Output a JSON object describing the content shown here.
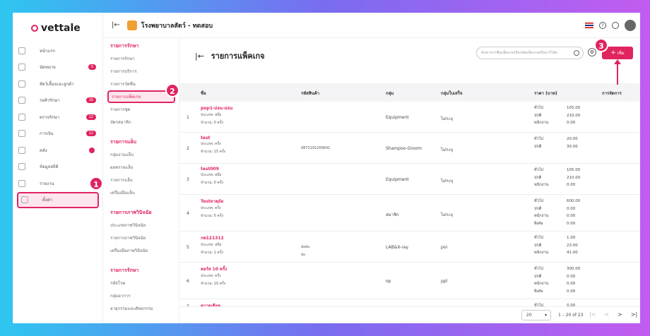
{
  "brand": {
    "name": "vettale"
  },
  "topbar": {
    "clinic_name": "โรงพยาบาลสัตว์ - ทดสอบ",
    "help": "?"
  },
  "sidebar": {
    "items": [
      {
        "label": "หน้าแรก"
      },
      {
        "label": "นัดหมาย",
        "badge": "0"
      },
      {
        "label": "สัตว์เลี้ยงและลูกค้า"
      },
      {
        "label": "รอคิวรักษา",
        "badge": "16"
      },
      {
        "label": "ตรวจรักษา",
        "badge": "12"
      },
      {
        "label": "การเงิน",
        "badge": "12"
      },
      {
        "label": "คลัง",
        "dot": true
      },
      {
        "label": "ข้อมูลสถิติ"
      },
      {
        "label": "รายงาน"
      },
      {
        "label": "ตั้งค่า"
      }
    ]
  },
  "submenu": {
    "sections": [
      {
        "title": "รายการรักษา",
        "items": [
          "รายการรักษา",
          "รายการบริการ",
          "รายการวัคซีน",
          "รายการแพ็คเกจ",
          "รายการชุด",
          "บัตรสมาชิก"
        ]
      },
      {
        "title": "รายการแล็บ",
        "items": [
          "กลุ่มงานแล็บ",
          "ผลตรวจแล็บ",
          "รายการแล็บ",
          "เครื่องมือแล็บ"
        ]
      },
      {
        "title": "รายการภาพวินิจฉัย",
        "items": [
          "ประเภทภาพวินิจฉัย",
          "รายการภาพวินิจฉัย",
          "เครื่องมือภาพวินิจฉัย"
        ]
      },
      {
        "title": "รายการรักษา",
        "items": [
          "รหัสโรค",
          "กลุ่มอาการ",
          "อายุกรรมและศัลยกรรม"
        ]
      }
    ]
  },
  "main": {
    "title": "รายการแพ็คเกจ",
    "search_placeholder": "ค้นหาจากชื่อแพ็คเกจหรือรหัสแพ็คเกจหรือบาร์โค้ด",
    "add_label": "เพิ่ม",
    "columns": [
      "ชื่อ",
      "รหัสสินค้า",
      "กลุ่ม",
      "กลุ่มใบเสร็จ",
      "ราคา (บาท)",
      "การจัดการ"
    ],
    "rows": [
      {
        "no": "1",
        "name": "pop1-ม่อน-ม่อน",
        "type": "ประเภท: หนึ่ง",
        "qty": "จำนวน: 0 ครั้ง",
        "code": "",
        "group": "Equipment",
        "receipt": "ไม่ระบุ",
        "prices": [
          [
            "ทั่วไป",
            "105.00"
          ],
          [
            "ปกติ",
            "210.00"
          ],
          [
            "พนักงาน",
            "0.00"
          ]
        ]
      },
      {
        "no": "2",
        "name": "test",
        "type": "ประเภท: ครั้ง",
        "qty": "จำนวน: 15 ครั้ง",
        "code": "0872191200641",
        "group": "Shampoo-Groom",
        "receipt": "ไม่ระบุ",
        "prices": [
          [
            "ทั่วไป",
            "20.00"
          ],
          [
            "ปกติ",
            "30.00"
          ]
        ]
      },
      {
        "no": "3",
        "name": "test009",
        "type": "ประเภท: หนึ่ง",
        "qty": "จำนวน: 0 ครั้ง",
        "code": "",
        "group": "Equipment",
        "receipt": "ไม่ระบุ",
        "prices": [
          [
            "ทั่วไป",
            "105.00"
          ],
          [
            "ปกติ",
            "210.00"
          ],
          [
            "พนักงาน",
            "0.00"
          ]
        ]
      },
      {
        "no": "4",
        "name": "Testยาคุมัย",
        "type": "ประเภท: ครั้ง",
        "qty": "จำนวน: 5 ครั้ง",
        "code": "",
        "group": "สมาชิก",
        "receipt": "ไม่ระบุ",
        "prices": [
          [
            "ทั่วไป",
            "600.00"
          ],
          [
            "ปกติ",
            "0.00"
          ],
          [
            "พนักงาน",
            "0.00"
          ],
          [
            "พิเศษ",
            "0.00"
          ]
        ]
      },
      {
        "no": "5",
        "name": "กพ121312",
        "type": "ประเภท: หนึ่ง",
        "qty": "จำนวน: 1 ครั้ง",
        "code": "ฮ่อฮ่อ\nฮ่อ",
        "group": "LAB&X-ray",
        "receipt": "poi",
        "prices": [
          [
            "ทั่วไป",
            "1.00"
          ],
          [
            "ปกติ",
            "23.00"
          ],
          [
            "พนักงาน",
            "41.00"
          ]
        ]
      },
      {
        "no": "6",
        "name": "คอร์ส 10 ครั้ง",
        "type": "ประเภท: ครั้ง",
        "qty": "จำนวน: 10 ครั้ง",
        "code": "",
        "group": "op",
        "receipt": "ppl",
        "prices": [
          [
            "ทั่วไป",
            "300.00"
          ],
          [
            "ปกติ",
            "0.00"
          ],
          [
            "พนักงาน",
            "0.00"
          ],
          [
            "พิเศษ",
            "0.00"
          ]
        ]
      },
      {
        "no": "7",
        "name": "ควาดเดือด",
        "type": "",
        "qty": "",
        "code": "",
        "group": "",
        "receipt": "",
        "prices": [
          [
            "ทั่วไป",
            "0.00"
          ]
        ]
      }
    ],
    "page_size": "20",
    "range": "1 – 20 of 23"
  },
  "callouts": [
    "1",
    "2",
    "3"
  ],
  "colors": {
    "accent": "#e0245e"
  }
}
